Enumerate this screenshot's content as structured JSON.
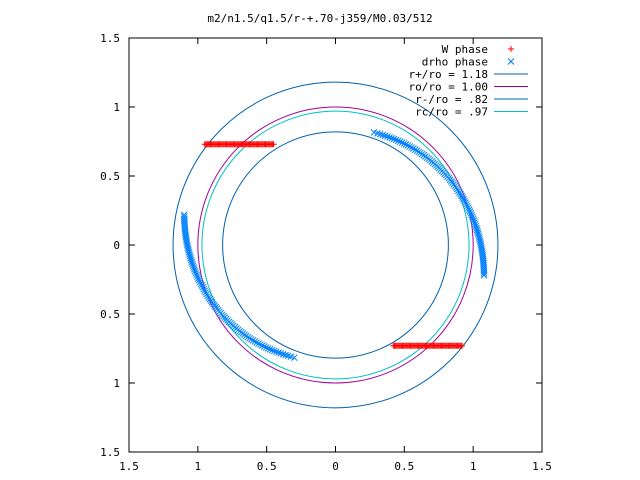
{
  "chart_data": {
    "type": "scatter",
    "title": "m2/n1.5/q1.5/r-+.70-j359/M0.03/512",
    "xlabel": "",
    "ylabel": "",
    "xlim": [
      -1.5,
      1.5
    ],
    "ylim": [
      -1.5,
      1.5
    ],
    "xticks": [
      -1.5,
      -1,
      -0.5,
      0,
      0.5,
      1,
      1.5
    ],
    "yticks": [
      -1.5,
      -1,
      -0.5,
      0,
      0.5,
      1,
      1.5
    ],
    "xtick_labels": [
      "1.5",
      "1",
      "0.5",
      "0",
      "0.5",
      "1",
      "1.5"
    ],
    "ytick_labels": [
      "1.5",
      "1",
      "0.5",
      "0",
      "0.5",
      "1",
      "1.5"
    ],
    "grid": false,
    "legend_position": "top-right",
    "legend": [
      {
        "label": "W phase",
        "kind": "marker-plus",
        "color": "#ff0000"
      },
      {
        "label": "drho phase",
        "kind": "marker-x",
        "color": "#0080ff"
      },
      {
        "label": "r+/ro = 1.18",
        "kind": "line",
        "color": "#0060ad"
      },
      {
        "label": "ro/ro = 1.00",
        "kind": "line",
        "color": "#a000a0"
      },
      {
        "label": "r-/ro = .82",
        "kind": "line",
        "color": "#0060ad"
      },
      {
        "label": "rc/ro = .97",
        "kind": "line",
        "color": "#00c0c0"
      }
    ],
    "circles": [
      {
        "name": "r+/ro",
        "r": 1.18,
        "cx": 0,
        "cy": 0,
        "color": "#0060ad"
      },
      {
        "name": "ro/ro",
        "r": 1.0,
        "cx": 0,
        "cy": 0,
        "color": "#a000a0"
      },
      {
        "name": "r-/ro",
        "r": 0.82,
        "cx": 0,
        "cy": 0,
        "color": "#0060ad"
      },
      {
        "name": "rc/ro",
        "r": 0.97,
        "cx": 0,
        "cy": 0,
        "color": "#00c0c0"
      }
    ],
    "series": [
      {
        "name": "W phase",
        "marker": "plus",
        "color": "#ff0000",
        "segments": [
          {
            "y": 0.73,
            "x_from": -0.95,
            "x_to": -0.45
          },
          {
            "y": -0.73,
            "x_from": 0.42,
            "x_to": 0.92
          }
        ]
      },
      {
        "name": "drho phase",
        "marker": "x",
        "color": "#0080ff",
        "arcs": [
          {
            "cx": -0.05,
            "cy": 0,
            "r_start": 0.88,
            "r_end": 1.15,
            "theta_start_deg": 68,
            "theta_end_deg": -11,
            "count": 95
          },
          {
            "cx": 0.03,
            "cy": 0,
            "r_start": 0.88,
            "r_end": 1.15,
            "theta_start_deg": 248,
            "theta_end_deg": 169,
            "count": 95
          }
        ]
      }
    ]
  }
}
